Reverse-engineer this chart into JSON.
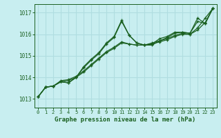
{
  "background_color": "#c8eef0",
  "plot_bg_color": "#c8eef0",
  "grid_color": "#b0dde0",
  "line_color": "#1a6020",
  "marker_color": "#1a6020",
  "title": "Graphe pression niveau de la mer (hPa)",
  "ylim": [
    1012.6,
    1017.4
  ],
  "xlim": [
    -0.5,
    23.5
  ],
  "yticks": [
    1013,
    1014,
    1015,
    1016,
    1017
  ],
  "xticks": [
    0,
    1,
    2,
    3,
    4,
    5,
    6,
    7,
    8,
    9,
    10,
    11,
    12,
    13,
    14,
    15,
    16,
    17,
    18,
    19,
    20,
    21,
    22,
    23
  ],
  "series": [
    [
      1013.1,
      1013.55,
      1013.6,
      1013.8,
      1013.75,
      1014.0,
      1014.5,
      1014.85,
      1015.15,
      1015.6,
      1015.9,
      1016.65,
      1015.95,
      1015.6,
      1015.5,
      1015.5,
      1015.7,
      1015.85,
      1016.05,
      1016.1,
      1016.05,
      1016.75,
      1016.5,
      1017.2
    ],
    [
      1013.1,
      1013.55,
      1013.6,
      1013.8,
      1013.85,
      1014.0,
      1014.25,
      1014.55,
      1014.85,
      1015.15,
      1015.35,
      1015.6,
      1015.55,
      1015.5,
      1015.5,
      1015.55,
      1015.65,
      1015.75,
      1015.9,
      1016.0,
      1016.0,
      1016.2,
      1016.55,
      1017.2
    ],
    [
      1013.1,
      1013.55,
      1013.6,
      1013.85,
      1013.9,
      1014.05,
      1014.3,
      1014.6,
      1014.9,
      1015.2,
      1015.4,
      1015.65,
      1015.55,
      1015.5,
      1015.5,
      1015.6,
      1015.7,
      1015.8,
      1015.95,
      1016.05,
      1016.0,
      1016.3,
      1016.75,
      1017.2
    ],
    [
      1013.1,
      1013.55,
      1013.6,
      1013.8,
      1013.75,
      1014.0,
      1014.45,
      1014.8,
      1015.1,
      1015.55,
      1015.85,
      1016.6,
      1015.95,
      1015.6,
      1015.5,
      1015.55,
      1015.8,
      1015.9,
      1016.1,
      1016.1,
      1016.05,
      1016.6,
      1016.5,
      1017.2
    ]
  ]
}
